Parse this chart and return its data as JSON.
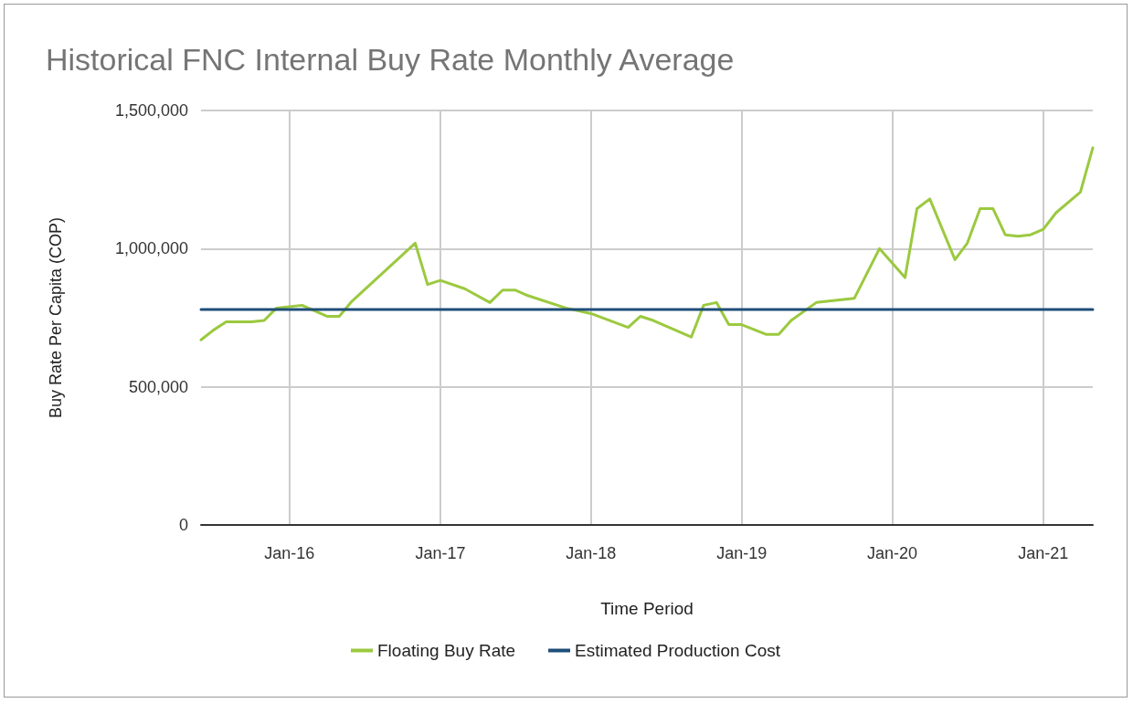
{
  "chart_data": {
    "type": "line",
    "title": "Historical FNC Internal Buy Rate Monthly Average",
    "xlabel": "Time Period",
    "ylabel": "Buy Rate Per Capita (COP)",
    "xlim": [
      "2015-06",
      "2021-05"
    ],
    "xticks": [
      {
        "value": "2016-01",
        "label": "Jan-16"
      },
      {
        "value": "2017-01",
        "label": "Jan-17"
      },
      {
        "value": "2018-01",
        "label": "Jan-18"
      },
      {
        "value": "2019-01",
        "label": "Jan-19"
      },
      {
        "value": "2020-01",
        "label": "Jan-20"
      },
      {
        "value": "2021-01",
        "label": "Jan-21"
      }
    ],
    "ylim": [
      0,
      1500000
    ],
    "yticks": [
      {
        "value": 0,
        "label": "0"
      },
      {
        "value": 500000,
        "label": "500,000"
      },
      {
        "value": 1000000,
        "label": "1,000,000"
      },
      {
        "value": 1500000,
        "label": "1,500,000"
      }
    ],
    "grid": true,
    "legend": "bottom",
    "marker": "none",
    "line_style": "solid",
    "series": [
      {
        "name": "Floating Buy Rate",
        "color": "#9bc93f",
        "x": [
          "2015-06",
          "2015-07",
          "2015-08",
          "2015-10",
          "2015-11",
          "2015-12",
          "2016-02",
          "2016-04",
          "2016-05",
          "2016-06",
          "2016-11",
          "2016-12",
          "2017-01",
          "2017-03",
          "2017-05",
          "2017-06",
          "2017-07",
          "2017-08",
          "2017-11",
          "2018-01",
          "2018-04",
          "2018-05",
          "2018-06",
          "2018-09",
          "2018-10",
          "2018-11",
          "2018-12",
          "2019-01",
          "2019-03",
          "2019-04",
          "2019-05",
          "2019-07",
          "2019-10",
          "2019-12",
          "2020-02",
          "2020-03",
          "2020-04",
          "2020-06",
          "2020-07",
          "2020-08",
          "2020-09",
          "2020-10",
          "2020-11",
          "2020-12",
          "2021-01",
          "2021-02",
          "2021-04",
          "2021-05"
        ],
        "values": [
          670000,
          705000,
          735000,
          735000,
          740000,
          785000,
          795000,
          755000,
          755000,
          810000,
          1020000,
          870000,
          885000,
          855000,
          805000,
          850000,
          850000,
          830000,
          785000,
          765000,
          715000,
          755000,
          740000,
          680000,
          795000,
          805000,
          725000,
          725000,
          690000,
          690000,
          740000,
          805000,
          820000,
          1000000,
          895000,
          1145000,
          1180000,
          960000,
          1020000,
          1145000,
          1145000,
          1050000,
          1045000,
          1050000,
          1070000,
          1130000,
          1205000,
          1365000
        ]
      },
      {
        "name": "Estimated Production Cost",
        "color": "#1f4e79",
        "x": [
          "2015-06",
          "2021-05"
        ],
        "values": [
          780000,
          780000
        ]
      }
    ]
  }
}
